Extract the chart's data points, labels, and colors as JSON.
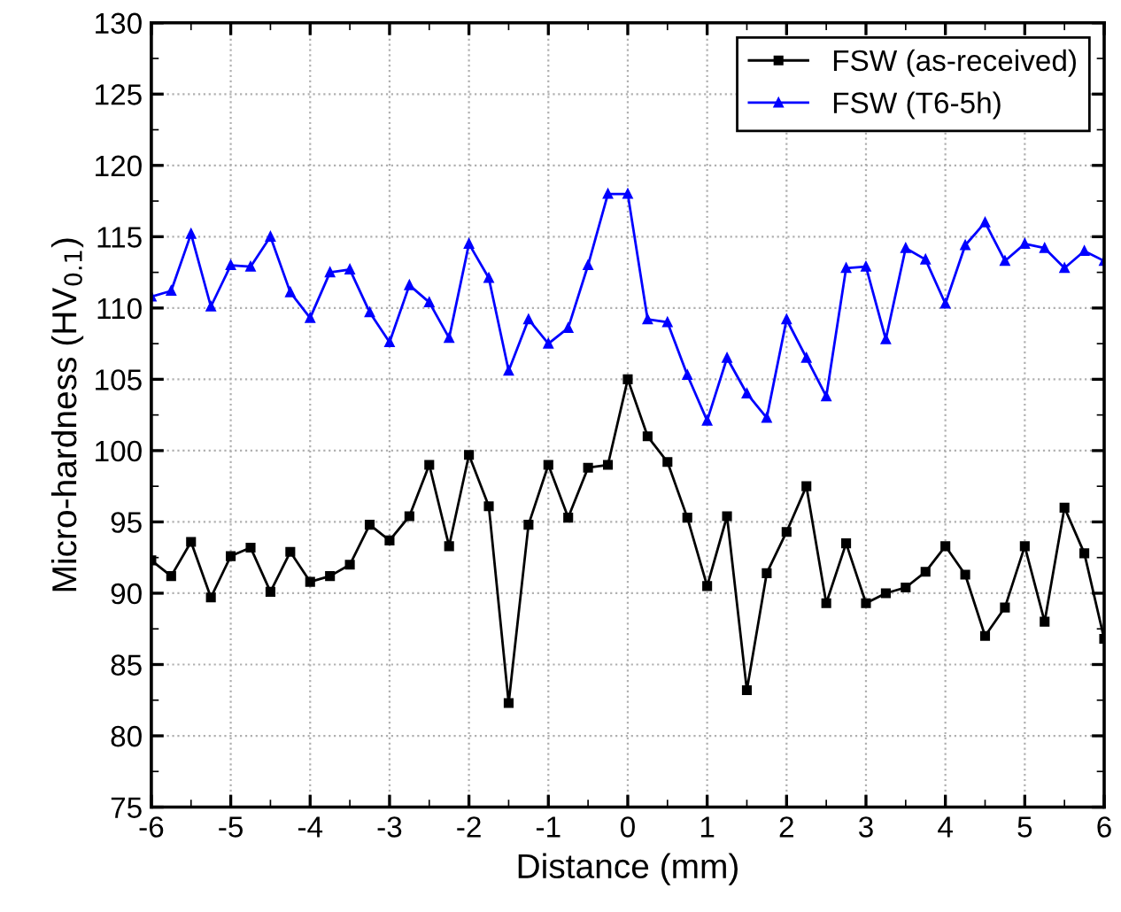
{
  "chart_data": {
    "type": "line",
    "xlabel": "Distance (mm)",
    "ylabel": "Micro-hardness (HV$_{0.1}$)",
    "x": [
      -6,
      -5.75,
      -5.5,
      -5.25,
      -5,
      -4.75,
      -4.5,
      -4.25,
      -4,
      -3.75,
      -3.5,
      -3.25,
      -3,
      -2.75,
      -2.5,
      -2.25,
      -2,
      -1.75,
      -1.5,
      -1.25,
      -1,
      -0.75,
      -0.5,
      -0.25,
      0,
      0.25,
      0.5,
      0.75,
      1,
      1.25,
      1.5,
      1.75,
      2,
      2.25,
      2.5,
      2.75,
      3,
      3.25,
      3.5,
      3.75,
      4,
      4.25,
      4.5,
      4.75,
      5,
      5.25,
      5.5,
      5.75,
      6
    ],
    "series": [
      {
        "name": "FSW (as-received)",
        "color": "#000000",
        "marker": "square",
        "values": [
          92.3,
          91.2,
          93.6,
          89.7,
          92.6,
          93.2,
          90.1,
          92.9,
          90.8,
          91.2,
          92.0,
          94.8,
          93.7,
          95.4,
          99.0,
          93.3,
          99.7,
          96.1,
          82.3,
          94.8,
          99.0,
          95.3,
          98.8,
          99.0,
          105.0,
          101.0,
          99.2,
          95.3,
          90.5,
          95.4,
          83.2,
          91.4,
          94.3,
          97.5,
          89.3,
          93.5,
          89.3,
          90.0,
          90.4,
          91.5,
          93.3,
          91.3,
          87.0,
          89.0,
          93.3,
          88.0,
          96.0,
          92.8,
          86.8
        ]
      },
      {
        "name": "FSW (T6-5h)",
        "color": "#0000ff",
        "marker": "triangle",
        "values": [
          110.8,
          111.2,
          115.2,
          110.1,
          113.0,
          112.9,
          115.0,
          111.1,
          109.3,
          112.5,
          112.7,
          109.7,
          107.6,
          111.6,
          110.4,
          107.9,
          114.5,
          112.1,
          105.6,
          109.2,
          107.5,
          108.6,
          113.0,
          118.0,
          118.0,
          109.2,
          109.0,
          105.3,
          102.1,
          106.5,
          104.0,
          102.3,
          109.2,
          106.5,
          103.8,
          112.8,
          112.9,
          107.8,
          114.2,
          113.4,
          110.3,
          114.4,
          116.0,
          113.3,
          114.5,
          114.2,
          112.8,
          114.0,
          113.3
        ]
      }
    ],
    "xlim": [
      -6,
      6
    ],
    "xticks": [
      -6,
      -5,
      -4,
      -3,
      -2,
      -1,
      0,
      1,
      2,
      3,
      4,
      5,
      6
    ],
    "ylim": [
      75,
      130
    ],
    "yticks": [
      75,
      80,
      85,
      90,
      95,
      100,
      105,
      110,
      115,
      120,
      125,
      130
    ],
    "grid": true,
    "legend": "top right",
    "line_style": "solid"
  }
}
